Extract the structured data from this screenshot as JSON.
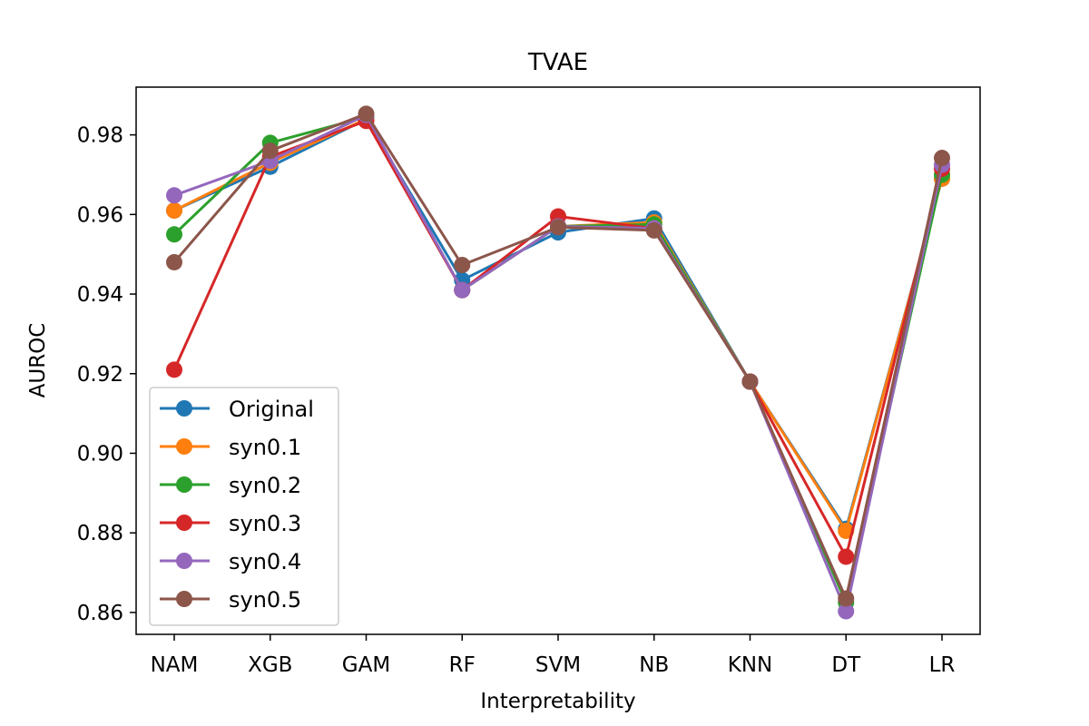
{
  "chart_data": {
    "type": "line",
    "title": "TVAE",
    "xlabel": "Interpretability",
    "ylabel": "AUROC",
    "categories": [
      "NAM",
      "XGB",
      "GAM",
      "RF",
      "SVM",
      "NB",
      "KNN",
      "DT",
      "LR"
    ],
    "ylim": [
      0.8545,
      0.992
    ],
    "yticks": [
      0.86,
      0.88,
      0.9,
      0.92,
      0.94,
      0.96,
      0.98
    ],
    "ytick_labels": [
      "0.86",
      "0.88",
      "0.90",
      "0.92",
      "0.94",
      "0.96",
      "0.98"
    ],
    "grid": false,
    "legend_position": "lower-left",
    "series": [
      {
        "name": "Original",
        "color": "#1f77b4",
        "values": [
          0.961,
          0.972,
          0.984,
          0.9435,
          0.9555,
          0.959,
          0.918,
          0.881,
          0.969
        ]
      },
      {
        "name": "syn0.1",
        "color": "#ff7f0e",
        "values": [
          0.961,
          0.973,
          0.984,
          0.941,
          0.957,
          0.958,
          0.918,
          0.8805,
          0.969
        ]
      },
      {
        "name": "syn0.2",
        "color": "#2ca02c",
        "values": [
          0.955,
          0.978,
          0.9845,
          0.941,
          0.957,
          0.9575,
          0.918,
          0.8625,
          0.97
        ]
      },
      {
        "name": "syn0.3",
        "color": "#d62728",
        "values": [
          0.921,
          0.9745,
          0.9835,
          0.941,
          0.9595,
          0.9565,
          0.918,
          0.874,
          0.9715
        ]
      },
      {
        "name": "syn0.4",
        "color": "#9467bd",
        "values": [
          0.9648,
          0.9735,
          0.985,
          0.941,
          0.957,
          0.9565,
          0.918,
          0.8603,
          0.9725
        ]
      },
      {
        "name": "syn0.5",
        "color": "#8c564b",
        "values": [
          0.948,
          0.976,
          0.9853,
          0.9473,
          0.9568,
          0.956,
          0.918,
          0.8635,
          0.9742
        ]
      }
    ]
  }
}
